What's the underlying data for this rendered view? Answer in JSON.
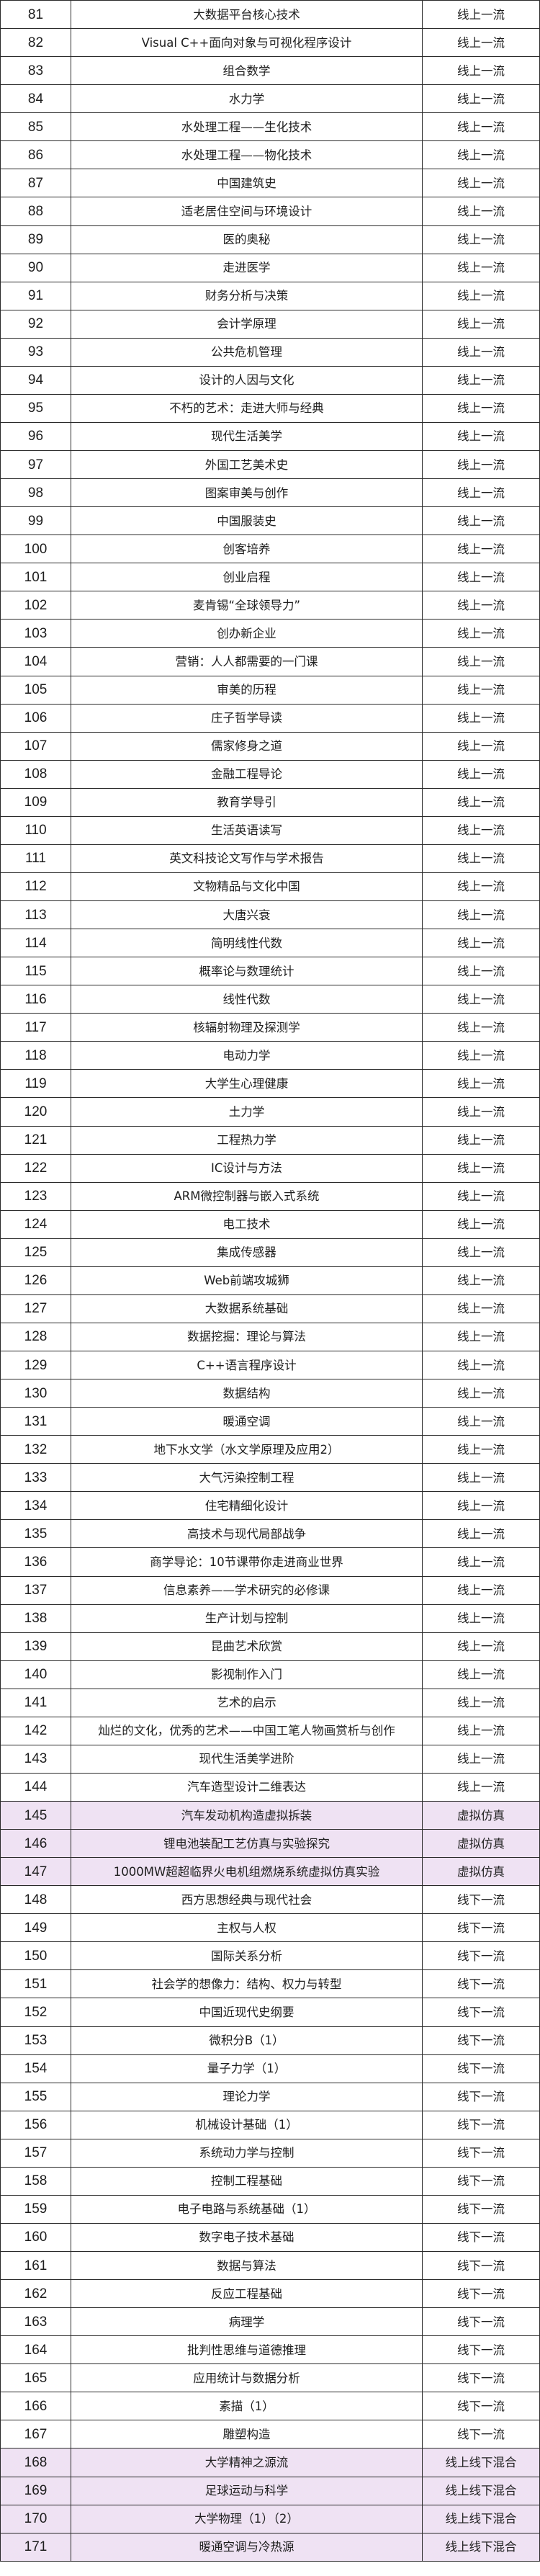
{
  "highlight_color": "#efe2f3",
  "rows": [
    {
      "no": "81",
      "course": "大数据平台核心技术",
      "type": "线上一流"
    },
    {
      "no": "82",
      "course": "Visual C++面向对象与可视化程序设计",
      "type": "线上一流"
    },
    {
      "no": "83",
      "course": "组合数学",
      "type": "线上一流"
    },
    {
      "no": "84",
      "course": "水力学",
      "type": "线上一流"
    },
    {
      "no": "85",
      "course": "水处理工程——生化技术",
      "type": "线上一流"
    },
    {
      "no": "86",
      "course": "水处理工程——物化技术",
      "type": "线上一流"
    },
    {
      "no": "87",
      "course": "中国建筑史",
      "type": "线上一流"
    },
    {
      "no": "88",
      "course": "适老居住空间与环境设计",
      "type": "线上一流"
    },
    {
      "no": "89",
      "course": "医的奥秘",
      "type": "线上一流"
    },
    {
      "no": "90",
      "course": "走进医学",
      "type": "线上一流"
    },
    {
      "no": "91",
      "course": "财务分析与决策",
      "type": "线上一流"
    },
    {
      "no": "92",
      "course": "会计学原理",
      "type": "线上一流"
    },
    {
      "no": "93",
      "course": "公共危机管理",
      "type": "线上一流"
    },
    {
      "no": "94",
      "course": "设计的人因与文化",
      "type": "线上一流"
    },
    {
      "no": "95",
      "course": "不朽的艺术：走进大师与经典",
      "type": "线上一流"
    },
    {
      "no": "96",
      "course": "现代生活美学",
      "type": "线上一流"
    },
    {
      "no": "97",
      "course": "外国工艺美术史",
      "type": "线上一流"
    },
    {
      "no": "98",
      "course": "图案审美与创作",
      "type": "线上一流"
    },
    {
      "no": "99",
      "course": "中国服装史",
      "type": "线上一流"
    },
    {
      "no": "100",
      "course": "创客培养",
      "type": "线上一流"
    },
    {
      "no": "101",
      "course": "创业启程",
      "type": "线上一流"
    },
    {
      "no": "102",
      "course": "麦肯锡“全球领导力”",
      "type": "线上一流"
    },
    {
      "no": "103",
      "course": "创办新企业",
      "type": "线上一流"
    },
    {
      "no": "104",
      "course": "营销：人人都需要的一门课",
      "type": "线上一流"
    },
    {
      "no": "105",
      "course": "审美的历程",
      "type": "线上一流"
    },
    {
      "no": "106",
      "course": "庄子哲学导读",
      "type": "线上一流"
    },
    {
      "no": "107",
      "course": "儒家修身之道",
      "type": "线上一流"
    },
    {
      "no": "108",
      "course": "金融工程导论",
      "type": "线上一流"
    },
    {
      "no": "109",
      "course": "教育学导引",
      "type": "线上一流"
    },
    {
      "no": "110",
      "course": "生活英语读写",
      "type": "线上一流"
    },
    {
      "no": "111",
      "course": "英文科技论文写作与学术报告",
      "type": "线上一流"
    },
    {
      "no": "112",
      "course": "文物精品与文化中国",
      "type": "线上一流"
    },
    {
      "no": "113",
      "course": "大唐兴衰",
      "type": "线上一流"
    },
    {
      "no": "114",
      "course": "简明线性代数",
      "type": "线上一流"
    },
    {
      "no": "115",
      "course": "概率论与数理统计",
      "type": "线上一流"
    },
    {
      "no": "116",
      "course": "线性代数",
      "type": "线上一流"
    },
    {
      "no": "117",
      "course": "核辐射物理及探测学",
      "type": "线上一流"
    },
    {
      "no": "118",
      "course": "电动力学",
      "type": "线上一流"
    },
    {
      "no": "119",
      "course": "大学生心理健康",
      "type": "线上一流"
    },
    {
      "no": "120",
      "course": "土力学",
      "type": "线上一流"
    },
    {
      "no": "121",
      "course": "工程热力学",
      "type": "线上一流"
    },
    {
      "no": "122",
      "course": "IC设计与方法",
      "type": "线上一流"
    },
    {
      "no": "123",
      "course": "ARM微控制器与嵌入式系统",
      "type": "线上一流"
    },
    {
      "no": "124",
      "course": "电工技术",
      "type": "线上一流"
    },
    {
      "no": "125",
      "course": "集成传感器",
      "type": "线上一流"
    },
    {
      "no": "126",
      "course": "Web前端攻城狮",
      "type": "线上一流"
    },
    {
      "no": "127",
      "course": "大数据系统基础",
      "type": "线上一流"
    },
    {
      "no": "128",
      "course": "数据挖掘：理论与算法",
      "type": "线上一流"
    },
    {
      "no": "129",
      "course": "C++语言程序设计",
      "type": "线上一流"
    },
    {
      "no": "130",
      "course": "数据结构",
      "type": "线上一流"
    },
    {
      "no": "131",
      "course": "暖通空调",
      "type": "线上一流"
    },
    {
      "no": "132",
      "course": "地下水文学（水文学原理及应用2）",
      "type": "线上一流"
    },
    {
      "no": "133",
      "course": "大气污染控制工程",
      "type": "线上一流"
    },
    {
      "no": "134",
      "course": "住宅精细化设计",
      "type": "线上一流"
    },
    {
      "no": "135",
      "course": "高技术与现代局部战争",
      "type": "线上一流"
    },
    {
      "no": "136",
      "course": "商学导论：10节课带你走进商业世界",
      "type": "线上一流"
    },
    {
      "no": "137",
      "course": "信息素养——学术研究的必修课",
      "type": "线上一流"
    },
    {
      "no": "138",
      "course": "生产计划与控制",
      "type": "线上一流"
    },
    {
      "no": "139",
      "course": "昆曲艺术欣赏",
      "type": "线上一流"
    },
    {
      "no": "140",
      "course": "影视制作入门",
      "type": "线上一流"
    },
    {
      "no": "141",
      "course": "艺术的启示",
      "type": "线上一流"
    },
    {
      "no": "142",
      "course": "灿烂的文化，优秀的艺术——中国工笔人物画赏析与创作",
      "type": "线上一流"
    },
    {
      "no": "143",
      "course": "现代生活美学进阶",
      "type": "线上一流"
    },
    {
      "no": "144",
      "course": "汽车造型设计二维表达",
      "type": "线上一流"
    },
    {
      "no": "145",
      "course": "汽车发动机构造虚拟拆装",
      "type": "虚拟仿真",
      "highlight": true
    },
    {
      "no": "146",
      "course": "锂电池装配工艺仿真与实验探究",
      "type": "虚拟仿真",
      "highlight": true
    },
    {
      "no": "147",
      "course": "1000MW超超临界火电机组燃烧系统虚拟仿真实验",
      "type": "虚拟仿真",
      "highlight": true
    },
    {
      "no": "148",
      "course": "西方思想经典与现代社会",
      "type": "线下一流"
    },
    {
      "no": "149",
      "course": "主权与人权",
      "type": "线下一流"
    },
    {
      "no": "150",
      "course": "国际关系分析",
      "type": "线下一流"
    },
    {
      "no": "151",
      "course": "社会学的想像力：结构、权力与转型",
      "type": "线下一流"
    },
    {
      "no": "152",
      "course": "中国近现代史纲要",
      "type": "线下一流"
    },
    {
      "no": "153",
      "course": "微积分B（1）",
      "type": "线下一流"
    },
    {
      "no": "154",
      "course": "量子力学（1）",
      "type": "线下一流"
    },
    {
      "no": "155",
      "course": "理论力学",
      "type": "线下一流"
    },
    {
      "no": "156",
      "course": "机械设计基础（1）",
      "type": "线下一流"
    },
    {
      "no": "157",
      "course": "系统动力学与控制",
      "type": "线下一流"
    },
    {
      "no": "158",
      "course": "控制工程基础",
      "type": "线下一流"
    },
    {
      "no": "159",
      "course": "电子电路与系统基础（1）",
      "type": "线下一流"
    },
    {
      "no": "160",
      "course": "数字电子技术基础",
      "type": "线下一流"
    },
    {
      "no": "161",
      "course": "数据与算法",
      "type": "线下一流"
    },
    {
      "no": "162",
      "course": "反应工程基础",
      "type": "线下一流"
    },
    {
      "no": "163",
      "course": "病理学",
      "type": "线下一流"
    },
    {
      "no": "164",
      "course": "批判性思维与道德推理",
      "type": "线下一流"
    },
    {
      "no": "165",
      "course": "应用统计与数据分析",
      "type": "线下一流"
    },
    {
      "no": "166",
      "course": "素描（1）",
      "type": "线下一流"
    },
    {
      "no": "167",
      "course": "雕塑构造",
      "type": "线下一流"
    },
    {
      "no": "168",
      "course": "大学精神之源流",
      "type": "线上线下混合",
      "highlight": true
    },
    {
      "no": "169",
      "course": "足球运动与科学",
      "type": "线上线下混合",
      "highlight": true
    },
    {
      "no": "170",
      "course": "大学物理（1）（2）",
      "type": "线上线下混合",
      "highlight": true
    },
    {
      "no": "171",
      "course": "暖通空调与冷热源",
      "type": "线上线下混合",
      "highlight": true
    }
  ]
}
